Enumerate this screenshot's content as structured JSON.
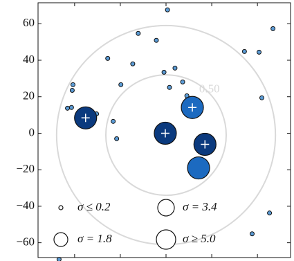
{
  "chart_data": {
    "type": "scatter",
    "xlim": [
      -70,
      70
    ],
    "ylim": [
      -70,
      73
    ],
    "xticks": [
      -50,
      -25,
      0,
      25,
      50
    ],
    "yticks": [
      {
        "value": 60,
        "label": "60"
      },
      {
        "value": 40,
        "label": "40"
      },
      {
        "value": 20,
        "label": "20"
      },
      {
        "value": 0,
        "label": "0"
      },
      {
        "value": -20,
        "label": "−20"
      },
      {
        "value": -40,
        "label": "−40"
      },
      {
        "value": -60,
        "label": "−60"
      }
    ],
    "contours": {
      "center": [
        0,
        -1
      ],
      "radii": [
        33,
        60
      ],
      "label": "0.50",
      "color": "#d9d9d9"
    },
    "series": [
      {
        "color": "#5b9bd5",
        "x": [
          0.8,
          -15.2,
          -5.3,
          58.5,
          42.9,
          50.9,
          -31.9,
          -18.2,
          -1.1,
          4.9,
          -50.9,
          -51.3,
          -24.7,
          9.1,
          1.9,
          11.4,
          52.4,
          -51.7,
          -53.9,
          -38.0,
          -28.9,
          -27.0,
          56.6,
          47.1,
          -58.5
        ],
        "values": [
          67.6,
          54.7,
          50.9,
          57.3,
          44.8,
          44.4,
          41.0,
          38.0,
          33.4,
          35.7,
          26.6,
          23.5,
          26.6,
          28.1,
          25.1,
          20.5,
          19.4,
          14.1,
          13.7,
          10.6,
          6.5,
          -3.0,
          -43.7,
          -55.1,
          -69.1
        ]
      },
      {
        "color": "#0b3a7e",
        "x": [
          -44.0,
          -0.4,
          21.3,
          14.4
        ],
        "values": [
          8.4,
          0,
          -6.1,
          14.1
        ],
        "colors": [
          "#0b3a7e",
          "#0b3a7e",
          "#0b3a7e",
          "#1c6ac0"
        ]
      },
      {
        "color": "#1c6ac0",
        "x": [
          17.8
        ],
        "values": [
          -19.0
        ]
      }
    ],
    "legend": [
      "σ ≤ 0.2",
      "σ = 3.4",
      "σ = 1.8",
      "σ ≥ 5.0"
    ]
  }
}
